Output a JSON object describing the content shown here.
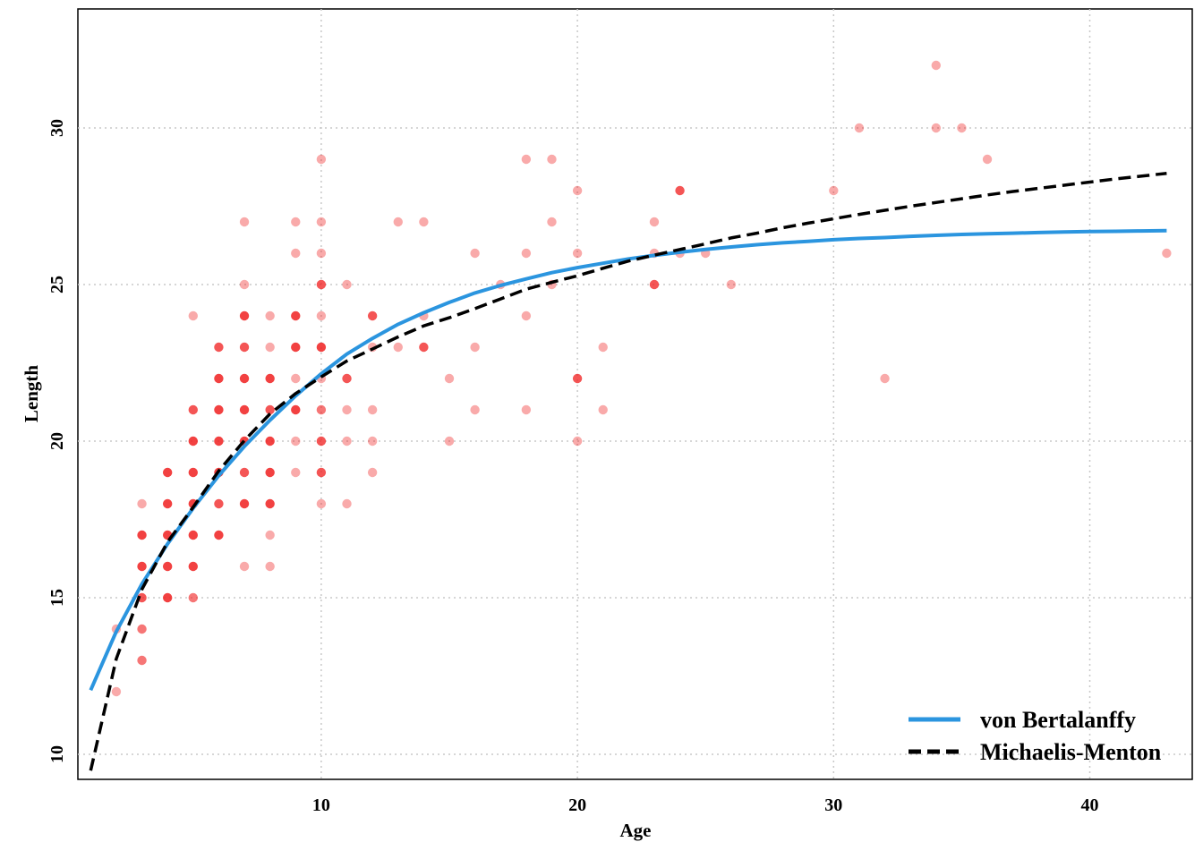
{
  "chart_data": {
    "type": "scatter",
    "title": "",
    "xlabel": "Age",
    "ylabel": "Length",
    "xlim": [
      0.5,
      44.0
    ],
    "ylim": [
      9.2,
      33.8
    ],
    "x_ticks": [
      10,
      20,
      30,
      40
    ],
    "y_ticks": [
      10,
      15,
      20,
      25,
      30
    ],
    "x_tick_labels": [
      "10",
      "20",
      "30",
      "40"
    ],
    "y_tick_labels": [
      "10",
      "15",
      "20",
      "25",
      "30"
    ],
    "grid": true,
    "legend_position": "bottom-right",
    "point_color": "#f02020",
    "points": [
      [
        2,
        12
      ],
      [
        2,
        14
      ],
      [
        3,
        13
      ],
      [
        3,
        14
      ],
      [
        3,
        15
      ],
      [
        3,
        16
      ],
      [
        3,
        17
      ],
      [
        3,
        18
      ],
      [
        4,
        15
      ],
      [
        4,
        16
      ],
      [
        4,
        17
      ],
      [
        4,
        18
      ],
      [
        4,
        19
      ],
      [
        5,
        15
      ],
      [
        5,
        16
      ],
      [
        5,
        17
      ],
      [
        5,
        18
      ],
      [
        5,
        19
      ],
      [
        5,
        20
      ],
      [
        5,
        21
      ],
      [
        5,
        24
      ],
      [
        6,
        17
      ],
      [
        6,
        18
      ],
      [
        6,
        19
      ],
      [
        6,
        20
      ],
      [
        6,
        21
      ],
      [
        6,
        22
      ],
      [
        6,
        23
      ],
      [
        7,
        16
      ],
      [
        7,
        18
      ],
      [
        7,
        19
      ],
      [
        7,
        20
      ],
      [
        7,
        21
      ],
      [
        7,
        22
      ],
      [
        7,
        23
      ],
      [
        7,
        24
      ],
      [
        7,
        25
      ],
      [
        7,
        27
      ],
      [
        8,
        16
      ],
      [
        8,
        17
      ],
      [
        8,
        18
      ],
      [
        8,
        19
      ],
      [
        8,
        20
      ],
      [
        8,
        21
      ],
      [
        8,
        22
      ],
      [
        8,
        23
      ],
      [
        8,
        24
      ],
      [
        9,
        19
      ],
      [
        9,
        20
      ],
      [
        9,
        21
      ],
      [
        9,
        22
      ],
      [
        9,
        23
      ],
      [
        9,
        24
      ],
      [
        9,
        26
      ],
      [
        9,
        27
      ],
      [
        10,
        18
      ],
      [
        10,
        19
      ],
      [
        10,
        20
      ],
      [
        10,
        21
      ],
      [
        10,
        22
      ],
      [
        10,
        23
      ],
      [
        10,
        24
      ],
      [
        10,
        25
      ],
      [
        10,
        26
      ],
      [
        10,
        27
      ],
      [
        10,
        29
      ],
      [
        11,
        18
      ],
      [
        11,
        20
      ],
      [
        11,
        21
      ],
      [
        11,
        22
      ],
      [
        11,
        25
      ],
      [
        12,
        19
      ],
      [
        12,
        20
      ],
      [
        12,
        21
      ],
      [
        12,
        23
      ],
      [
        12,
        24
      ],
      [
        13,
        23
      ],
      [
        13,
        27
      ],
      [
        14,
        23
      ],
      [
        14,
        24
      ],
      [
        14,
        27
      ],
      [
        15,
        20
      ],
      [
        15,
        22
      ],
      [
        16,
        21
      ],
      [
        16,
        23
      ],
      [
        16,
        26
      ],
      [
        17,
        25
      ],
      [
        18,
        21
      ],
      [
        18,
        24
      ],
      [
        18,
        26
      ],
      [
        18,
        29
      ],
      [
        19,
        25
      ],
      [
        19,
        27
      ],
      [
        19,
        29
      ],
      [
        20,
        20
      ],
      [
        20,
        22
      ],
      [
        20,
        26
      ],
      [
        20,
        28
      ],
      [
        21,
        21
      ],
      [
        21,
        23
      ],
      [
        23,
        25
      ],
      [
        23,
        26
      ],
      [
        23,
        27
      ],
      [
        24,
        26
      ],
      [
        24,
        28
      ],
      [
        25,
        26
      ],
      [
        26,
        25
      ],
      [
        30,
        28
      ],
      [
        31,
        30
      ],
      [
        32,
        22
      ],
      [
        34,
        30
      ],
      [
        34,
        32
      ],
      [
        35,
        30
      ],
      [
        36,
        29
      ],
      [
        43,
        26
      ]
    ],
    "point_weights": {
      "3,14": 2,
      "3,15": 3,
      "3,16": 4,
      "3,17": 4,
      "3,13": 2,
      "4,15": 4,
      "4,16": 4,
      "4,17": 4,
      "4,18": 4,
      "4,19": 4,
      "5,16": 4,
      "5,17": 4,
      "5,18": 4,
      "5,19": 4,
      "5,20": 4,
      "5,21": 3,
      "5,15": 2,
      "6,17": 4,
      "6,18": 3,
      "6,19": 4,
      "6,20": 4,
      "6,21": 4,
      "6,22": 4,
      "6,23": 3,
      "7,18": 4,
      "7,19": 3,
      "7,20": 4,
      "7,21": 4,
      "7,22": 4,
      "7,23": 3,
      "7,24": 4,
      "8,18": 4,
      "8,19": 4,
      "8,20": 4,
      "8,21": 3,
      "8,22": 4,
      "9,21": 4,
      "9,23": 4,
      "9,24": 4,
      "10,19": 3,
      "10,20": 3,
      "10,21": 2,
      "10,23": 4,
      "10,25": 3,
      "11,22": 3,
      "12,24": 3,
      "14,23": 3,
      "20,22": 3,
      "23,25": 3,
      "24,28": 3
    },
    "series": [
      {
        "name": "von Bertalanffy",
        "color": "#2b95df",
        "dash": "solid",
        "x": [
          1,
          2,
          3,
          4,
          5,
          6,
          7,
          8,
          9,
          10,
          11,
          12,
          13,
          14,
          15,
          16,
          17,
          18,
          19,
          20,
          21,
          22,
          23,
          24,
          25,
          26,
          27,
          28,
          29,
          30,
          31,
          32,
          33,
          34,
          35,
          36,
          37,
          38,
          39,
          40,
          41,
          42,
          43
        ],
        "y": [
          12.05,
          13.92,
          15.44,
          16.72,
          17.86,
          18.9,
          19.83,
          20.67,
          21.45,
          22.15,
          22.78,
          23.28,
          23.73,
          24.1,
          24.43,
          24.73,
          24.97,
          25.18,
          25.38,
          25.54,
          25.68,
          25.82,
          25.93,
          26.03,
          26.12,
          26.2,
          26.27,
          26.33,
          26.38,
          26.43,
          26.47,
          26.5,
          26.54,
          26.57,
          26.6,
          26.62,
          26.64,
          26.66,
          26.68,
          26.69,
          26.7,
          26.71,
          26.72
        ]
      },
      {
        "name": "Michaelis-Menton",
        "color": "#000000",
        "dash": "dashed",
        "x": [
          1,
          2,
          3,
          4,
          5,
          6,
          7,
          8,
          9,
          10,
          11,
          12,
          13,
          14,
          15,
          16,
          17,
          18,
          19,
          20,
          21,
          22,
          23,
          24,
          25,
          26,
          27,
          28,
          29,
          30,
          31,
          32,
          33,
          34,
          35,
          36,
          37,
          38,
          39,
          40,
          41,
          42,
          43
        ],
        "y": [
          9.48,
          13.05,
          15.27,
          16.78,
          17.89,
          19.05,
          20.02,
          20.87,
          21.52,
          22.05,
          22.56,
          22.94,
          23.33,
          23.68,
          23.94,
          24.23,
          24.54,
          24.85,
          25.07,
          25.28,
          25.52,
          25.75,
          25.94,
          26.12,
          26.3,
          26.49,
          26.64,
          26.81,
          26.96,
          27.1,
          27.24,
          27.37,
          27.5,
          27.62,
          27.74,
          27.86,
          27.97,
          28.07,
          28.17,
          28.27,
          28.37,
          28.46,
          28.55
        ]
      }
    ]
  }
}
